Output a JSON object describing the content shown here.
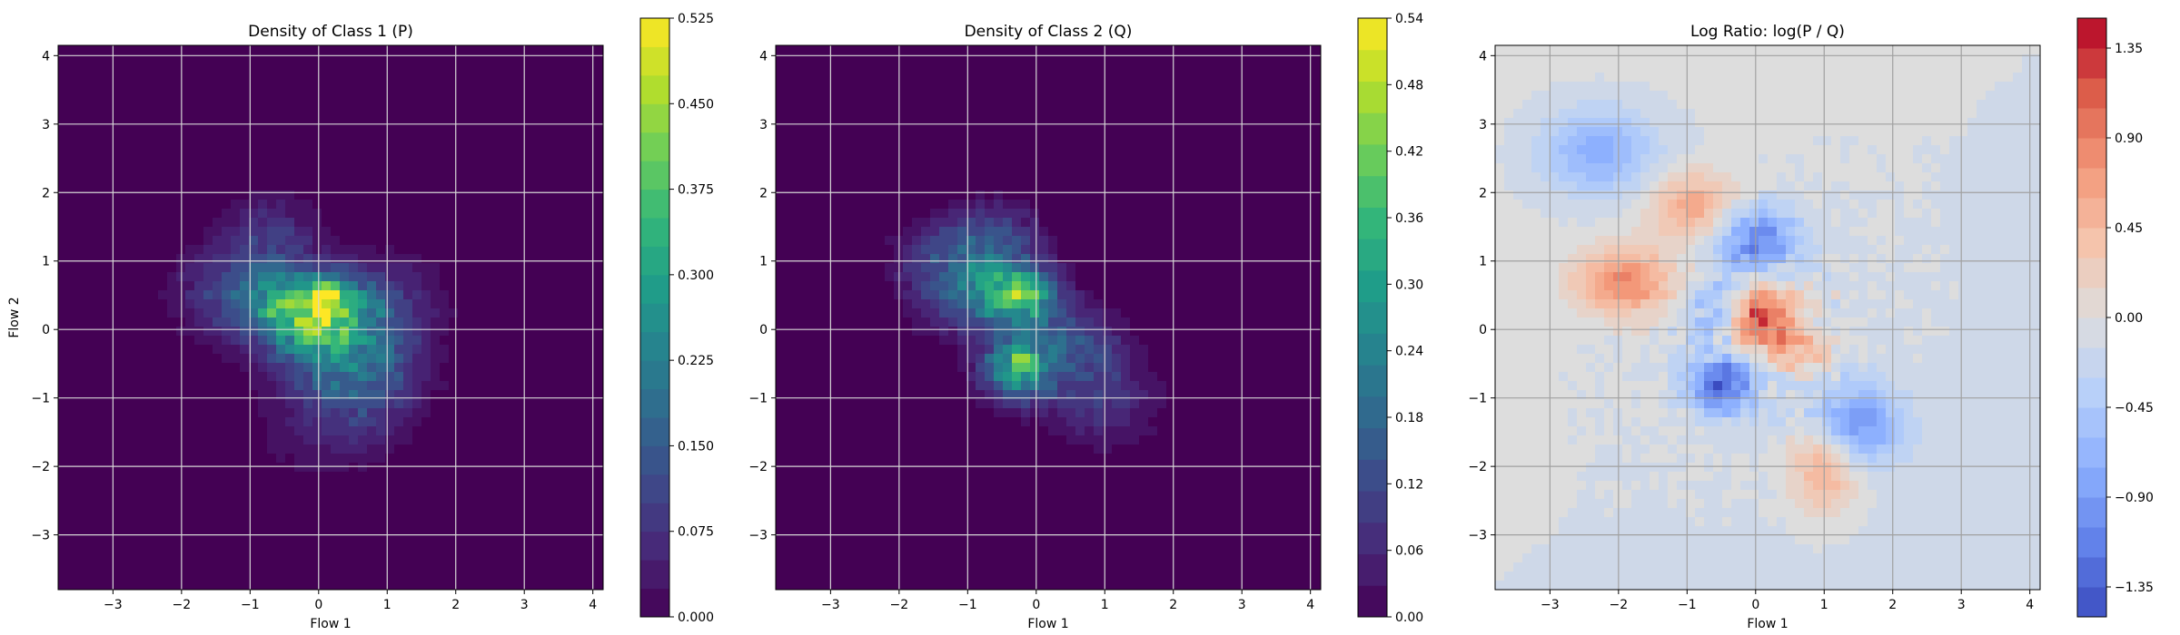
{
  "chart_data": [
    {
      "type": "heatmap",
      "title": "Density of Class 1 (P)",
      "xlabel": "Flow 1",
      "ylabel": "Flow 2",
      "xlim": [
        -3.8,
        4.15
      ],
      "ylim": [
        -3.8,
        4.15
      ],
      "xticks": [
        -3,
        -2,
        -1,
        0,
        1,
        2,
        3,
        4
      ],
      "yticks": [
        -3,
        -2,
        -1,
        0,
        1,
        2,
        3,
        4
      ],
      "grid": true,
      "colormap": "viridis",
      "colorbar": {
        "min": 0.0,
        "max": 0.525,
        "levels": 21,
        "ticks": [
          0.0,
          0.075,
          0.15,
          0.225,
          0.3,
          0.375,
          0.45,
          0.525
        ],
        "tick_labels": [
          "0.000",
          "0.075",
          "0.150",
          "0.225",
          "0.300",
          "0.375",
          "0.450",
          "0.525"
        ]
      },
      "density_peaks": [
        {
          "x": -0.1,
          "y": 0.3,
          "sigma_x": 0.55,
          "sigma_y": 0.35,
          "weight": 0.34
        },
        {
          "x": 0.25,
          "y": -0.2,
          "sigma_x": 0.7,
          "sigma_y": 0.5,
          "weight": 0.18
        },
        {
          "x": -1.1,
          "y": 0.55,
          "sigma_x": 0.6,
          "sigma_y": 0.45,
          "weight": 0.14
        },
        {
          "x": 0.6,
          "y": -0.8,
          "sigma_x": 0.6,
          "sigma_y": 0.45,
          "weight": 0.12
        },
        {
          "x": -0.7,
          "y": 1.4,
          "sigma_x": 0.5,
          "sigma_y": 0.4,
          "weight": 0.08
        },
        {
          "x": 1.0,
          "y": 0.5,
          "sigma_x": 0.6,
          "sigma_y": 0.45,
          "weight": 0.07
        },
        {
          "x": 0.2,
          "y": -1.6,
          "sigma_x": 0.7,
          "sigma_y": 0.4,
          "weight": 0.05
        },
        {
          "x": 0.1,
          "y": 0.5,
          "sigma_x": 0.18,
          "sigma_y": 0.14,
          "weight": 0.2
        }
      ]
    },
    {
      "type": "heatmap",
      "title": "Density of Class 2 (Q)",
      "xlabel": "Flow 1",
      "ylabel": "",
      "xlim": [
        -3.8,
        4.15
      ],
      "ylim": [
        -3.8,
        4.15
      ],
      "xticks": [
        -3,
        -2,
        -1,
        0,
        1,
        2,
        3,
        4
      ],
      "yticks": [
        -3,
        -2,
        -1,
        0,
        1,
        2,
        3,
        4
      ],
      "grid": true,
      "colormap": "viridis",
      "colorbar": {
        "min": 0.0,
        "max": 0.54,
        "levels": 19,
        "ticks": [
          0.0,
          0.06,
          0.12,
          0.18,
          0.24,
          0.3,
          0.36,
          0.42,
          0.48,
          0.54
        ],
        "tick_labels": [
          "0.00",
          "0.06",
          "0.12",
          "0.18",
          "0.24",
          "0.30",
          "0.36",
          "0.42",
          "0.48",
          "0.54"
        ]
      },
      "density_peaks": [
        {
          "x": -0.9,
          "y": 0.6,
          "sigma_x": 0.55,
          "sigma_y": 0.45,
          "weight": 0.22
        },
        {
          "x": -0.2,
          "y": 0.5,
          "sigma_x": 0.35,
          "sigma_y": 0.3,
          "weight": 0.3
        },
        {
          "x": -0.3,
          "y": -0.6,
          "sigma_x": 0.35,
          "sigma_y": 0.3,
          "weight": 0.3
        },
        {
          "x": 0.5,
          "y": -0.2,
          "sigma_x": 0.5,
          "sigma_y": 0.4,
          "weight": 0.14
        },
        {
          "x": -0.6,
          "y": 1.4,
          "sigma_x": 0.5,
          "sigma_y": 0.35,
          "weight": 0.1
        },
        {
          "x": 0.9,
          "y": -1.0,
          "sigma_x": 0.6,
          "sigma_y": 0.45,
          "weight": 0.1
        },
        {
          "x": -1.5,
          "y": 1.1,
          "sigma_x": 0.45,
          "sigma_y": 0.35,
          "weight": 0.06
        },
        {
          "x": -0.2,
          "y": -0.5,
          "sigma_x": 0.12,
          "sigma_y": 0.1,
          "weight": 0.2
        },
        {
          "x": -0.2,
          "y": 0.55,
          "sigma_x": 0.12,
          "sigma_y": 0.1,
          "weight": 0.15
        }
      ]
    },
    {
      "type": "heatmap",
      "title": "Log Ratio: log(P / Q)",
      "xlabel": "Flow 1",
      "ylabel": "",
      "xlim": [
        -3.8,
        4.15
      ],
      "ylim": [
        -3.8,
        4.15
      ],
      "xticks": [
        -3,
        -2,
        -1,
        0,
        1,
        2,
        3,
        4
      ],
      "yticks": [
        -3,
        -2,
        -1,
        0,
        1,
        2,
        3,
        4
      ],
      "grid": true,
      "colormap": "coolwarm",
      "colorbar": {
        "min": -1.5,
        "max": 1.5,
        "levels": 20,
        "ticks": [
          -1.35,
          -0.9,
          -0.45,
          0.0,
          0.45,
          0.9,
          1.35
        ],
        "tick_labels": [
          "−1.35",
          "−0.90",
          "−0.45",
          "0.00",
          "0.45",
          "0.90",
          "1.35"
        ]
      },
      "ratio_features": [
        {
          "x": 0.1,
          "y": 0.2,
          "sigma_x": 0.35,
          "sigma_y": 0.3,
          "value": 1.2
        },
        {
          "x": -1.9,
          "y": 0.7,
          "sigma_x": 0.5,
          "sigma_y": 0.35,
          "value": 0.9
        },
        {
          "x": -0.9,
          "y": 1.8,
          "sigma_x": 0.45,
          "sigma_y": 0.35,
          "value": 0.7
        },
        {
          "x": 1.0,
          "y": -1.9,
          "sigma_x": 0.35,
          "sigma_y": 0.5,
          "value": 0.8
        },
        {
          "x": 0.6,
          "y": -0.3,
          "sigma_x": 0.3,
          "sigma_y": 0.25,
          "value": 0.6
        },
        {
          "x": 0.0,
          "y": 1.3,
          "sigma_x": 0.45,
          "sigma_y": 0.35,
          "value": -1.0
        },
        {
          "x": -0.5,
          "y": -0.8,
          "sigma_x": 0.35,
          "sigma_y": 0.3,
          "value": -1.2
        },
        {
          "x": 1.4,
          "y": -1.4,
          "sigma_x": 0.5,
          "sigma_y": 0.4,
          "value": -1.0
        },
        {
          "x": -2.3,
          "y": 2.6,
          "sigma_x": 0.6,
          "sigma_y": 0.45,
          "value": -0.7
        },
        {
          "x": -0.6,
          "y": 0.3,
          "sigma_x": 0.25,
          "sigma_y": 0.35,
          "value": -0.6
        }
      ],
      "background": {
        "upper_left": -0.15,
        "lower_right": 0.2
      }
    }
  ]
}
